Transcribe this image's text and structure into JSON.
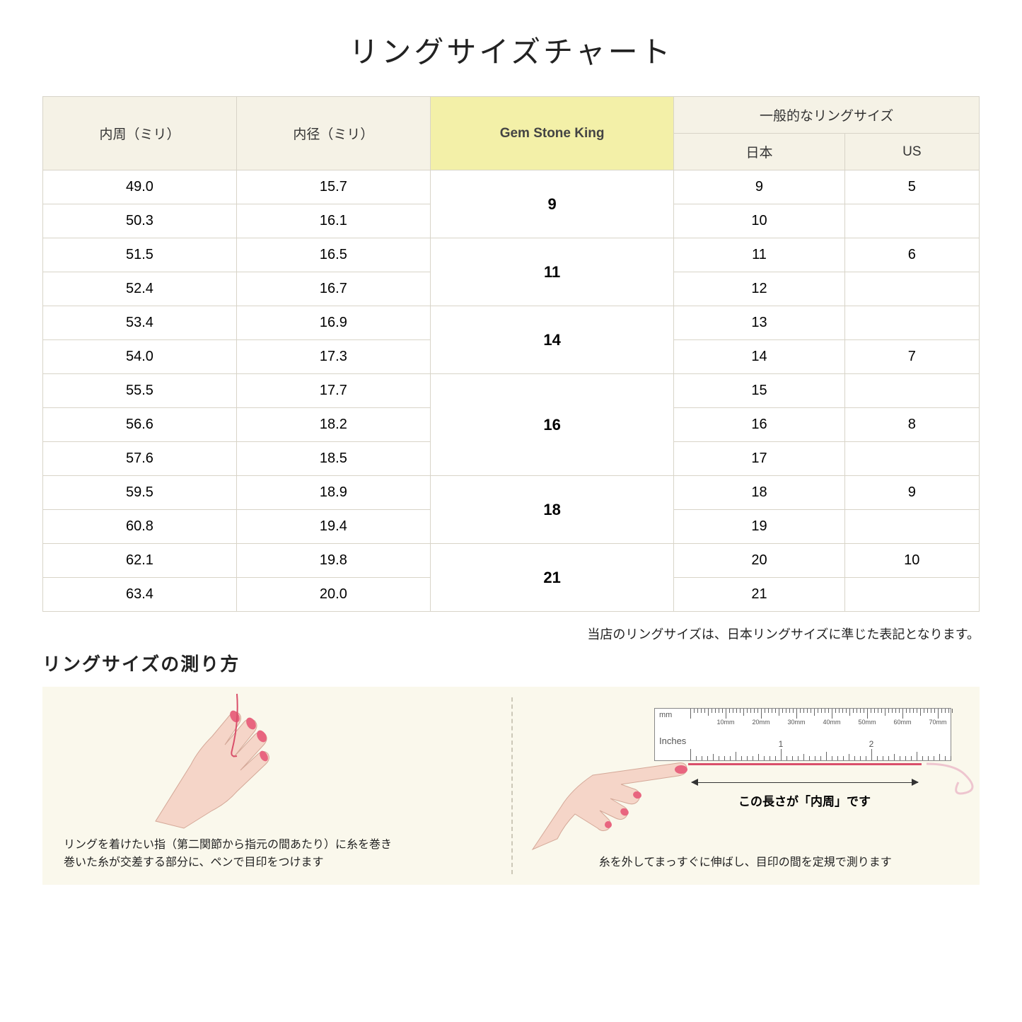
{
  "title": "リングサイズチャート",
  "headers": {
    "circumference": "内周（ミリ）",
    "diameter": "内径（ミリ）",
    "gsk": "Gem Stone King",
    "general": "一般的なリングサイズ",
    "japan": "日本",
    "us": "US"
  },
  "rows": [
    {
      "circ": "49.0",
      "dia": "15.7",
      "jp": "9",
      "us": "5"
    },
    {
      "circ": "50.3",
      "dia": "16.1",
      "jp": "10",
      "us": ""
    },
    {
      "circ": "51.5",
      "dia": "16.5",
      "jp": "11",
      "us": "6"
    },
    {
      "circ": "52.4",
      "dia": "16.7",
      "jp": "12",
      "us": ""
    },
    {
      "circ": "53.4",
      "dia": "16.9",
      "jp": "13",
      "us": ""
    },
    {
      "circ": "54.0",
      "dia": "17.3",
      "jp": "14",
      "us": "7"
    },
    {
      "circ": "55.5",
      "dia": "17.7",
      "jp": "15",
      "us": ""
    },
    {
      "circ": "56.6",
      "dia": "18.2",
      "jp": "16",
      "us": "8"
    },
    {
      "circ": "57.6",
      "dia": "18.5",
      "jp": "17",
      "us": ""
    },
    {
      "circ": "59.5",
      "dia": "18.9",
      "jp": "18",
      "us": "9"
    },
    {
      "circ": "60.8",
      "dia": "19.4",
      "jp": "19",
      "us": ""
    },
    {
      "circ": "62.1",
      "dia": "19.8",
      "jp": "20",
      "us": "10"
    },
    {
      "circ": "63.4",
      "dia": "20.0",
      "jp": "21",
      "us": ""
    }
  ],
  "gsk_groups": [
    {
      "value": "9",
      "span": 2
    },
    {
      "value": "11",
      "span": 2
    },
    {
      "value": "14",
      "span": 2
    },
    {
      "value": "16",
      "span": 3
    },
    {
      "value": "18",
      "span": 2
    },
    {
      "value": "21",
      "span": 2
    }
  ],
  "note": "当店のリングサイズは、日本リングサイズに準じた表記となります。",
  "measure_title": "リングサイズの測り方",
  "step1": "リングを着けたい指（第二関節から指元の間あたり）に糸を巻き\n巻いた糸が交差する部分に、ペンで目印をつけます",
  "step2": "糸を外してまっすぐに伸ばし、目印の間を定規で測ります",
  "arrow_label": "この長さが「内周」です",
  "ruler_mm": "mm",
  "ruler_in": "Inches",
  "mm_labels": [
    "10mm",
    "20mm",
    "30mm",
    "40mm",
    "50mm",
    "60mm",
    "70mm"
  ],
  "colors": {
    "header_bg": "#f5f2e6",
    "highlight_bg": "#f3f0a8",
    "border": "#d8d4c8",
    "instruction_bg": "#faf8ec",
    "thread": "#d94f6a",
    "skin": "#f5d5c8",
    "nail": "#e8657f"
  }
}
